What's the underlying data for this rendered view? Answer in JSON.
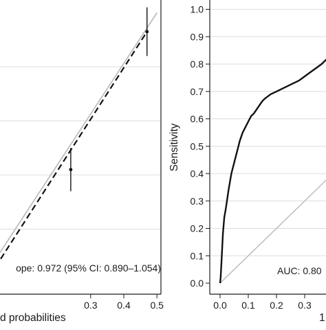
{
  "chart_data": [
    {
      "type": "line",
      "title": "",
      "xlabel": "d probabilities",
      "ylabel": "",
      "xlim": [
        -0.05,
        0.5
      ],
      "x_ticks": [
        0.3,
        0.4,
        0.5
      ],
      "grid": true,
      "annotation": "ope: 0.972 (95% CI: 0.890–1.054)",
      "reference_line": {
        "x": [
          -0.05,
          0.5
        ],
        "y": [
          -0.015,
          0.5
        ]
      },
      "fitted_line": {
        "x": [
          -0.05,
          0.47
        ],
        "y": [
          -0.03,
          0.465
        ]
      },
      "points": [
        {
          "x": 0.24,
          "y": 0.21,
          "ci": [
            0.17,
            0.25
          ]
        },
        {
          "x": 0.47,
          "y": 0.465,
          "ci": [
            0.42,
            0.51
          ]
        }
      ]
    },
    {
      "type": "line",
      "title": "",
      "xlabel": "1",
      "ylabel": "Sensitivity",
      "xlim": [
        0,
        0.4
      ],
      "ylim": [
        0,
        1
      ],
      "x_ticks": [
        "0.0",
        "0.1",
        "0.2",
        "0.3"
      ],
      "y_ticks": [
        "0.0",
        "0.1",
        "0.2",
        "0.3",
        "0.4",
        "0.5",
        "0.6",
        "0.7",
        "0.8",
        "0.9",
        "1.0"
      ],
      "grid": true,
      "annotation": "AUC: 0.80",
      "reference_line": {
        "x": [
          0,
          0.4
        ],
        "y": [
          0,
          0.4
        ]
      },
      "series": [
        {
          "x": [
            0.0,
            0.002,
            0.005,
            0.01,
            0.015,
            0.02,
            0.03,
            0.04,
            0.05,
            0.06,
            0.07,
            0.08,
            0.09,
            0.1,
            0.11,
            0.12,
            0.13,
            0.14,
            0.15,
            0.16,
            0.18,
            0.2,
            0.22,
            0.24,
            0.26,
            0.28,
            0.3,
            0.32,
            0.34,
            0.36,
            0.38,
            0.4
          ],
          "y": [
            0.0,
            0.02,
            0.08,
            0.18,
            0.24,
            0.27,
            0.34,
            0.4,
            0.44,
            0.48,
            0.52,
            0.55,
            0.57,
            0.59,
            0.61,
            0.62,
            0.635,
            0.65,
            0.665,
            0.675,
            0.69,
            0.7,
            0.71,
            0.72,
            0.73,
            0.74,
            0.755,
            0.77,
            0.785,
            0.8,
            0.82,
            0.83
          ]
        }
      ]
    }
  ]
}
